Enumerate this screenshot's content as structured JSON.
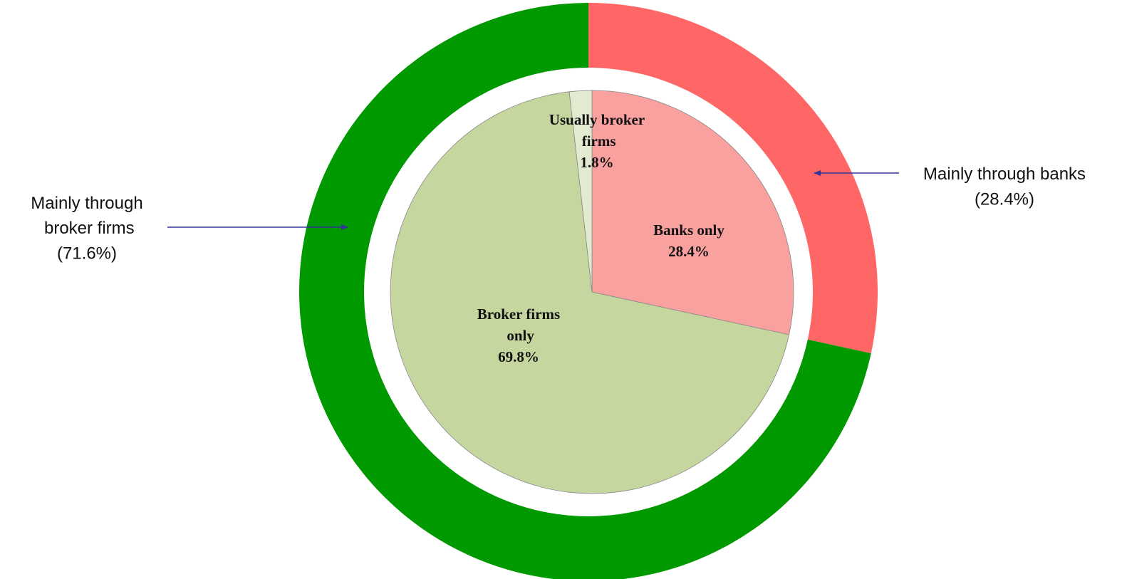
{
  "chart_data": {
    "type": "pie",
    "series": [
      {
        "categories": [
          "Banks only",
          "Broker firms only",
          "Usually broker firms"
        ],
        "values": [
          28.4,
          69.8,
          1.8
        ],
        "value_labels": [
          "28.4%",
          "69.8%",
          "1.8%"
        ],
        "colors": [
          "#f9a19e",
          "#c5d79f",
          "#e2ebd0"
        ]
      },
      {
        "categories": [
          "Mainly through banks",
          "Mainly through broker firms"
        ],
        "values": [
          28.4,
          71.6
        ],
        "value_labels": [
          "(28.4%)",
          "(71.6%)"
        ],
        "colors": [
          "#ff6666",
          "#009900"
        ]
      }
    ]
  }
}
